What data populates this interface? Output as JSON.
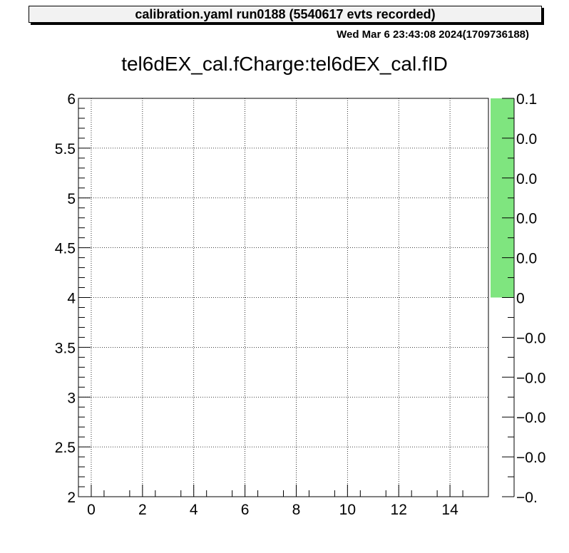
{
  "header": {
    "label": "calibration.yaml  run0188 (5540617 evts recorded)",
    "timestamp": "Wed Mar  6 23:43:08 2024(1709736188)"
  },
  "chart_data": {
    "type": "heatmap",
    "title": "tel6dEX_cal.fCharge:tel6dEX_cal.fID",
    "xlabel": "",
    "ylabel": "",
    "xlim": [
      -0.5,
      15.5
    ],
    "ylim": [
      2,
      6
    ],
    "x_ticks": [
      "0",
      "2",
      "4",
      "6",
      "8",
      "10",
      "12",
      "14"
    ],
    "y_ticks": [
      "2",
      "2.5",
      "3",
      "3.5",
      "4",
      "4.5",
      "5",
      "5.5",
      "6"
    ],
    "grid": true,
    "entries": [],
    "colorbar": {
      "range": [
        -0.1,
        0.1
      ],
      "tick_labels": [
        "0.1",
        "0.0",
        "0.0",
        "0.0",
        "0.0",
        "0",
        "−0.0",
        "−0.0",
        "−0.0",
        "−0.0",
        "−0."
      ],
      "fill_color": "#7fe57f",
      "fill_range": [
        0,
        0.1
      ]
    }
  }
}
